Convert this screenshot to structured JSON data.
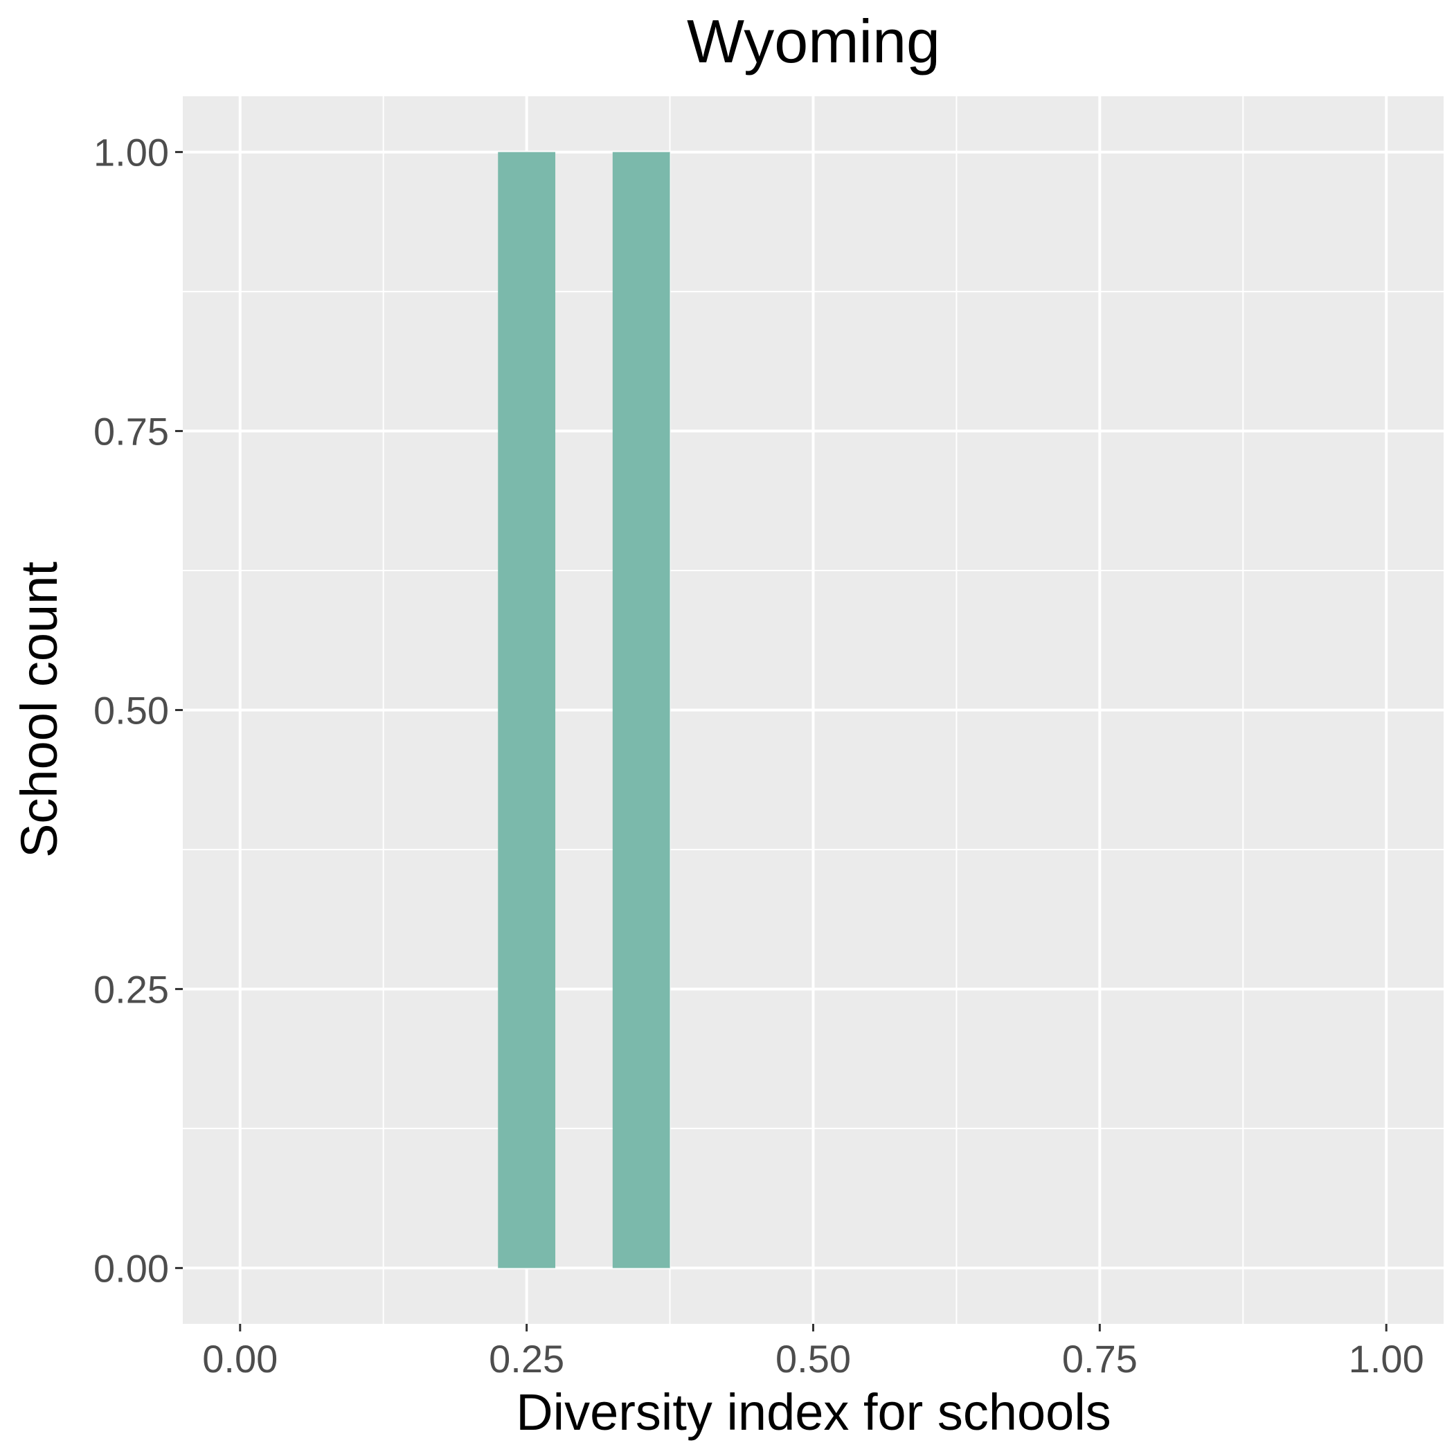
{
  "colors": {
    "panel_background": "#ebebeb",
    "grid": "#ffffff",
    "bar_fill": "#7bb9ab",
    "tick": "#333333",
    "tick_label": "#4d4d4d",
    "text": "#000000"
  },
  "chart_data": {
    "type": "bar",
    "title": "Wyoming",
    "xlabel": "Diversity index for schools",
    "ylabel": "School count",
    "xlim": [
      -0.05,
      1.05
    ],
    "ylim": [
      -0.05,
      1.05
    ],
    "grid": true,
    "legend": "none",
    "x_ticks": [
      0.0,
      0.25,
      0.5,
      0.75,
      1.0
    ],
    "x_tick_labels": [
      "0.00",
      "0.25",
      "0.50",
      "0.75",
      "1.00"
    ],
    "y_ticks": [
      0.0,
      0.25,
      0.5,
      0.75,
      1.0
    ],
    "y_tick_labels": [
      "0.00",
      "0.25",
      "0.50",
      "0.75",
      "1.00"
    ],
    "bins": [
      {
        "x_start": 0.0,
        "x_end": 0.025,
        "count": 0
      },
      {
        "x_start": 0.225,
        "x_end": 0.275,
        "count": 1
      },
      {
        "x_start": 0.325,
        "x_end": 0.375,
        "count": 1
      },
      {
        "x_start": 0.975,
        "x_end": 1.0,
        "count": 0
      }
    ]
  }
}
